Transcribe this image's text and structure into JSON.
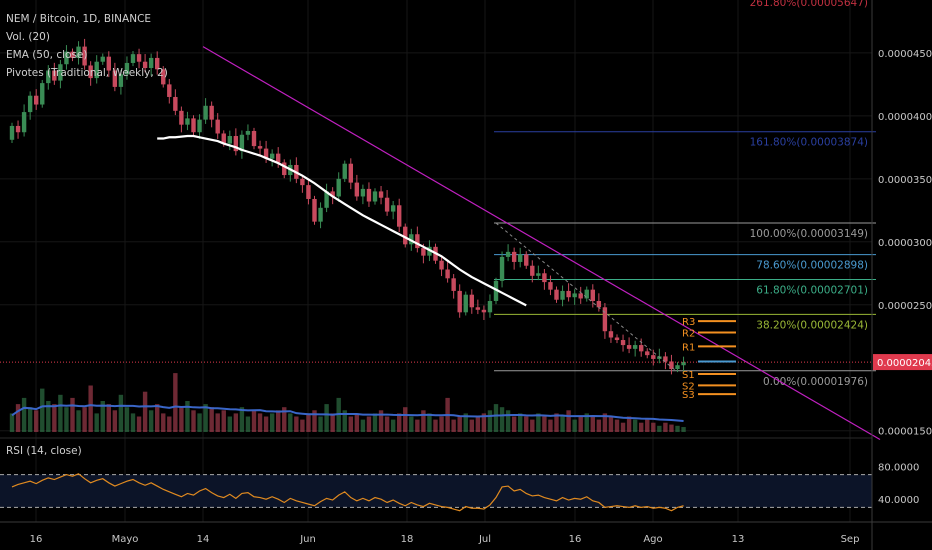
{
  "header": {
    "symbol_line": "NEM / Bitcoin, 1D, BINANCE",
    "volume_label": "Vol. (20)",
    "ema_label": "EMA (50, close)",
    "pivots_label": "Pivotes (Traditional, Weekly, 2)",
    "rsi_label": "RSI (14, close)"
  },
  "colors": {
    "up": "#3a8c55",
    "down": "#c84a5e",
    "ema": "#ffffff",
    "trendline": "#c020c0",
    "vol_ma": "#3a66c8",
    "rsi_line": "#e08a20",
    "pivot": "#f39021",
    "last_price_bg": "#e03a4e",
    "fib_1618": "#2a3fa0",
    "fib_100": "#9a9a9a",
    "fib_786": "#4a9ad0",
    "fib_618": "#3cae88",
    "fib_382": "#9ab836",
    "fib_0": "#9a9a9a"
  },
  "chart_data": {
    "type": "candlestick",
    "price_axis": {
      "ticks": [
        "0.00004500",
        "0.00004000",
        "0.00003500",
        "0.00003000",
        "0.00002500",
        "0.00001500"
      ],
      "range": [
        1.45e-05,
        4.92e-05
      ]
    },
    "last_price": "0.00002045",
    "top_label": "261.80%(0.00005647)",
    "fib_levels": [
      {
        "label": "161.80%(0.00003874)",
        "price": 3.874e-05,
        "key": "fib_1618"
      },
      {
        "label": "100.00%(0.00003149)",
        "price": 3.149e-05,
        "key": "fib_100"
      },
      {
        "label": "78.60%(0.00002898)",
        "price": 2.898e-05,
        "key": "fib_786"
      },
      {
        "label": "61.80%(0.00002701)",
        "price": 2.701e-05,
        "key": "fib_618"
      },
      {
        "label": "38.20%(0.00002424)",
        "price": 2.424e-05,
        "key": "fib_382"
      },
      {
        "label": "0.00%(0.00001976)",
        "price": 1.976e-05,
        "key": "fib_0"
      }
    ],
    "pivots": [
      {
        "label": "R3",
        "price": 2.37e-05
      },
      {
        "label": "R2",
        "price": 2.28e-05
      },
      {
        "label": "R1",
        "price": 2.17e-05
      },
      {
        "label": "P",
        "price": 2.05e-05
      },
      {
        "label": "S1",
        "price": 1.95e-05
      },
      {
        "label": "S2",
        "price": 1.86e-05
      },
      {
        "label": "S3",
        "price": 1.79e-05
      }
    ],
    "x_ticks": [
      "16",
      "Mayo",
      "14",
      "Jun",
      "18",
      "Jul",
      "16",
      "Ago",
      "13",
      "Sep"
    ],
    "rsi_axis": {
      "ticks": [
        "80.0000",
        "40.0000"
      ],
      "range": [
        0,
        100
      ],
      "bands": [
        70,
        30
      ]
    },
    "candles": [
      [
        38100,
        39200
      ],
      [
        39200,
        38700
      ],
      [
        38700,
        40300
      ],
      [
        40300,
        41600
      ],
      [
        41600,
        40900
      ],
      [
        40900,
        42600
      ],
      [
        42600,
        43600
      ],
      [
        43600,
        42800
      ],
      [
        42800,
        44100
      ],
      [
        44100,
        45100
      ],
      [
        45100,
        44600
      ],
      [
        44600,
        45500
      ],
      [
        45500,
        44000
      ],
      [
        44000,
        43000
      ],
      [
        43000,
        44300
      ],
      [
        44300,
        44700
      ],
      [
        44700,
        43600
      ],
      [
        43600,
        42300
      ],
      [
        42300,
        43300
      ],
      [
        43300,
        44200
      ],
      [
        44200,
        44900
      ],
      [
        44900,
        44300
      ],
      [
        44300,
        43800
      ],
      [
        43800,
        44600
      ],
      [
        44600,
        43700
      ],
      [
        43700,
        42500
      ],
      [
        42500,
        41500
      ],
      [
        41500,
        40400
      ],
      [
        40400,
        39300
      ],
      [
        39300,
        39800
      ],
      [
        39800,
        38700
      ],
      [
        38700,
        39700
      ],
      [
        39700,
        40800
      ],
      [
        40800,
        39700
      ],
      [
        39700,
        38600
      ],
      [
        38600,
        37800
      ],
      [
        37800,
        38400
      ],
      [
        38400,
        37200
      ],
      [
        37200,
        38500
      ],
      [
        38500,
        38800
      ],
      [
        38800,
        37600
      ],
      [
        37600,
        37400
      ],
      [
        37400,
        36600
      ],
      [
        36600,
        37000
      ],
      [
        37000,
        36300
      ],
      [
        36300,
        35300
      ],
      [
        35300,
        36100
      ],
      [
        36100,
        35000
      ],
      [
        35000,
        34500
      ],
      [
        34500,
        33400
      ],
      [
        33400,
        31600
      ],
      [
        31600,
        32700
      ],
      [
        32700,
        34000
      ],
      [
        34000,
        33600
      ],
      [
        33600,
        35000
      ],
      [
        35000,
        36200
      ],
      [
        36200,
        34700
      ],
      [
        34700,
        33600
      ],
      [
        33600,
        34200
      ],
      [
        34200,
        33200
      ],
      [
        33200,
        34000
      ],
      [
        34000,
        33500
      ],
      [
        33500,
        32400
      ],
      [
        32400,
        32900
      ],
      [
        32900,
        31200
      ],
      [
        31200,
        29800
      ],
      [
        29800,
        30600
      ],
      [
        30600,
        29500
      ],
      [
        29500,
        28900
      ],
      [
        28900,
        29600
      ],
      [
        29600,
        28500
      ],
      [
        28500,
        27800
      ],
      [
        27800,
        27100
      ],
      [
        27100,
        26100
      ],
      [
        26100,
        24400
      ],
      [
        24400,
        25800
      ],
      [
        25800,
        24800
      ],
      [
        24800,
        24600
      ],
      [
        24600,
        24400
      ],
      [
        24400,
        25300
      ],
      [
        25300,
        26900
      ],
      [
        26900,
        28800
      ],
      [
        28800,
        29200
      ],
      [
        29200,
        28400
      ],
      [
        28400,
        29000
      ],
      [
        29000,
        28100
      ],
      [
        28100,
        27300
      ],
      [
        27300,
        27500
      ],
      [
        27500,
        26800
      ],
      [
        26800,
        26200
      ],
      [
        26200,
        25400
      ],
      [
        25400,
        26100
      ],
      [
        26100,
        25600
      ],
      [
        25600,
        25900
      ],
      [
        25900,
        25500
      ],
      [
        25500,
        26200
      ],
      [
        26200,
        25300
      ],
      [
        25300,
        24800
      ],
      [
        24800,
        22900
      ],
      [
        22900,
        22400
      ],
      [
        22400,
        22200
      ],
      [
        22200,
        21800
      ],
      [
        21800,
        21500
      ],
      [
        21500,
        21800
      ],
      [
        21800,
        21300
      ],
      [
        21300,
        21000
      ],
      [
        21000,
        20700
      ],
      [
        20700,
        20900
      ],
      [
        20900,
        20500
      ],
      [
        20500,
        19900
      ],
      [
        19900,
        20200
      ],
      [
        20200,
        20450
      ]
    ],
    "ema": [
      null,
      null,
      null,
      null,
      null,
      null,
      null,
      null,
      null,
      null,
      null,
      null,
      null,
      null,
      null,
      null,
      null,
      null,
      null,
      null,
      null,
      null,
      null,
      null,
      38200,
      38200,
      38300,
      38300,
      38350,
      38400,
      38400,
      38300,
      38200,
      38100,
      38000,
      37800,
      37650,
      37500,
      37300,
      37150,
      37000,
      36850,
      36650,
      36450,
      36250,
      36000,
      35750,
      35500,
      35250,
      34950,
      34650,
      34300,
      33950,
      33600,
      33300,
      33000,
      32700,
      32400,
      32100,
      31850,
      31600,
      31350,
      31100,
      30850,
      30600,
      30350,
      30100,
      29850,
      29600,
      29350,
      29100,
      28850,
      28500,
      28150,
      27800,
      27500,
      27200,
      26950,
      26700,
      26450,
      26200,
      25950,
      25700,
      25450,
      25200,
      24950
    ],
    "volume": [
      30,
      45,
      55,
      40,
      35,
      70,
      50,
      45,
      60,
      40,
      55,
      35,
      40,
      75,
      30,
      50,
      45,
      35,
      60,
      40,
      30,
      25,
      65,
      35,
      45,
      30,
      25,
      95,
      40,
      50,
      35,
      30,
      45,
      40,
      30,
      35,
      25,
      30,
      40,
      25,
      35,
      30,
      25,
      30,
      35,
      40,
      30,
      25,
      20,
      30,
      35,
      25,
      45,
      30,
      55,
      35,
      25,
      30,
      20,
      25,
      30,
      35,
      25,
      20,
      30,
      40,
      25,
      20,
      35,
      30,
      20,
      25,
      55,
      20,
      25,
      30,
      20,
      25,
      30,
      35,
      45,
      40,
      35,
      25,
      30,
      25,
      20,
      30,
      25,
      20,
      30,
      25,
      35,
      20,
      25,
      30,
      25,
      20,
      30,
      25,
      20,
      15,
      25,
      20,
      15,
      20,
      15,
      10,
      15,
      12,
      10,
      8
    ],
    "rsi": [
      55,
      58,
      60,
      62,
      59,
      63,
      66,
      64,
      67,
      70,
      68,
      71,
      65,
      60,
      63,
      65,
      60,
      56,
      59,
      62,
      64,
      60,
      57,
      60,
      56,
      52,
      49,
      46,
      43,
      47,
      45,
      50,
      53,
      48,
      44,
      42,
      46,
      41,
      47,
      48,
      43,
      42,
      40,
      43,
      40,
      36,
      41,
      38,
      36,
      34,
      32,
      37,
      41,
      39,
      45,
      49,
      42,
      38,
      41,
      38,
      42,
      40,
      36,
      39,
      35,
      32,
      36,
      33,
      31,
      35,
      33,
      31,
      30,
      28,
      26,
      31,
      29,
      29,
      28,
      33,
      42,
      55,
      56,
      50,
      52,
      47,
      44,
      45,
      42,
      40,
      38,
      42,
      39,
      41,
      40,
      43,
      38,
      36,
      30,
      31,
      32,
      31,
      30,
      32,
      30,
      31,
      29,
      30,
      29,
      26,
      30,
      32
    ]
  }
}
